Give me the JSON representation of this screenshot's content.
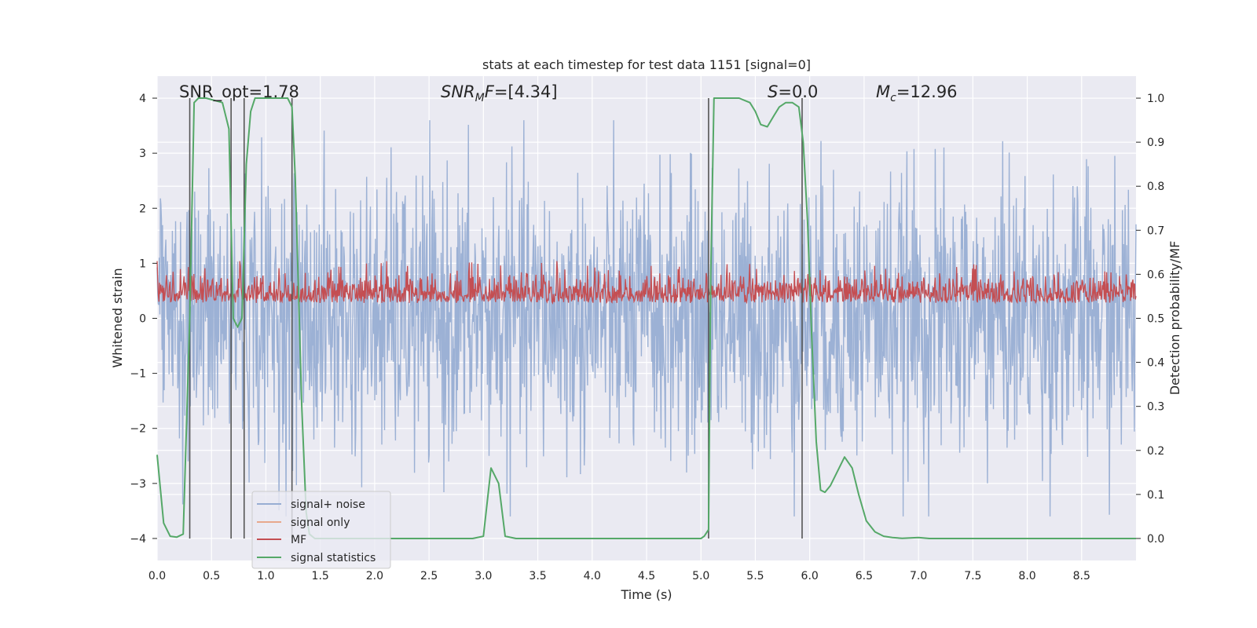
{
  "chart_data": {
    "type": "line",
    "title": "stats at each timestep for test data 1151 [signal=0]",
    "xlabel": "Time (s)",
    "ylabel": "Whitened strain",
    "y2label": "Detection probability/MF",
    "xlim": [
      0,
      9.0
    ],
    "ylim": [
      -4.4,
      4.4
    ],
    "y2lim": [
      -0.05,
      1.05
    ],
    "xticks": [
      0.0,
      0.5,
      1.0,
      1.5,
      2.0,
      2.5,
      3.0,
      3.5,
      4.0,
      4.5,
      5.0,
      5.5,
      6.0,
      6.5,
      7.0,
      7.5,
      8.0,
      8.5
    ],
    "xtick_labels": [
      "0.0",
      "0.5",
      "1.0",
      "1.5",
      "2.0",
      "2.5",
      "3.0",
      "3.5",
      "4.0",
      "4.5",
      "5.0",
      "5.5",
      "6.0",
      "6.5",
      "7.0",
      "7.5",
      "8.0",
      "8.5"
    ],
    "yticks": [
      4,
      3,
      2,
      1,
      0,
      -1,
      -2,
      -3,
      -4
    ],
    "ytick_labels": [
      "4",
      "3",
      "2",
      "1",
      "0",
      "−1",
      "−2",
      "−3",
      "−4"
    ],
    "y2ticks": [
      1.0,
      0.9,
      0.8,
      0.7,
      0.6,
      0.5,
      0.4,
      0.3,
      0.2,
      0.1,
      0.0
    ],
    "y2tick_labels": [
      "1.0",
      "0.9",
      "0.8",
      "0.7",
      "0.6",
      "0.5",
      "0.4",
      "0.3",
      "0.2",
      "0.1",
      "0.0"
    ],
    "grid": true,
    "legend_position": "lower-left",
    "annotations": {
      "snr_opt": "SNR_opt=1.78",
      "snr_mf": "=[4.34]",
      "snr_mf_base": "SNR",
      "snr_mf_sub": "M",
      "snr_mf_ital2": "F",
      "s": "=0.0",
      "s_label": "S",
      "mc": "=12.96",
      "mc_base": "M",
      "mc_sub": "c"
    },
    "series": [
      {
        "name": "signal+ noise",
        "color": "#98aed3",
        "description": "whitened strain noise, amplitude roughly within -3.5 to 3.6"
      },
      {
        "name": "signal only",
        "color": "#e8a88c",
        "values": []
      },
      {
        "name": "MF",
        "color": "#c44e52",
        "axis": "y2",
        "range": [
          0.5,
          0.63
        ]
      },
      {
        "name": "signal statistics",
        "color": "#55a868",
        "axis": "y2",
        "x": [
          0.0,
          0.06,
          0.12,
          0.18,
          0.24,
          0.3,
          0.34,
          0.38,
          0.45,
          0.6,
          0.66,
          0.7,
          0.74,
          0.78,
          0.82,
          0.86,
          0.9,
          0.95,
          1.0,
          1.1,
          1.2,
          1.24,
          1.27,
          1.33,
          1.37,
          1.4,
          1.45,
          1.5,
          2.0,
          2.5,
          2.9,
          3.0,
          3.07,
          3.14,
          3.2,
          3.3,
          3.6,
          4.0,
          4.5,
          5.0,
          5.03,
          5.07,
          5.09,
          5.12,
          5.14,
          5.2,
          5.35,
          5.45,
          5.5,
          5.55,
          5.61,
          5.67,
          5.72,
          5.78,
          5.84,
          5.9,
          5.94,
          5.98,
          6.02,
          6.06,
          6.1,
          6.14,
          6.19,
          6.25,
          6.32,
          6.39,
          6.45,
          6.52,
          6.6,
          6.68,
          6.76,
          6.85,
          7.0,
          7.1,
          7.3,
          7.6,
          8.0,
          8.5,
          9.0
        ],
        "values": [
          0.19,
          0.035,
          0.005,
          0.003,
          0.01,
          0.5,
          0.99,
          1.0,
          1.0,
          0.99,
          0.93,
          0.5,
          0.48,
          0.5,
          0.85,
          0.97,
          1.0,
          1.0,
          1.0,
          1.0,
          1.0,
          0.98,
          0.82,
          0.3,
          0.06,
          0.01,
          0.0,
          0.0,
          0.0,
          0.0,
          0.0,
          0.005,
          0.16,
          0.125,
          0.005,
          0.0,
          0.0,
          0.0,
          0.0,
          0.0,
          0.005,
          0.02,
          0.6,
          1.0,
          1.0,
          1.0,
          1.0,
          0.99,
          0.97,
          0.94,
          0.935,
          0.96,
          0.98,
          0.99,
          0.99,
          0.98,
          0.9,
          0.72,
          0.45,
          0.22,
          0.11,
          0.105,
          0.12,
          0.15,
          0.185,
          0.16,
          0.1,
          0.04,
          0.015,
          0.005,
          0.002,
          0.0005,
          0.002,
          0.0,
          0.0,
          0.0,
          0.0,
          0.0,
          0.0
        ]
      }
    ],
    "vertical_markers": [
      0.3,
      0.68,
      0.8,
      1.24,
      5.07,
      5.93
    ]
  }
}
